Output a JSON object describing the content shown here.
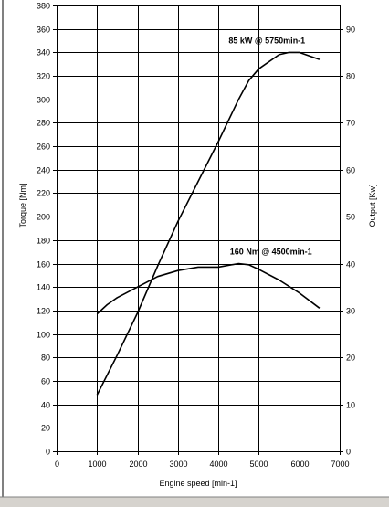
{
  "chart_data": {
    "type": "line",
    "xlabel": "Engine speed [min-1]",
    "ylabel_left": "Torque [Nm]",
    "ylabel_right": "Output [Kw]",
    "x_range": [
      0,
      7000
    ],
    "x_ticks": [
      0,
      1000,
      2000,
      3000,
      4000,
      5000,
      6000,
      7000
    ],
    "y_left_range": [
      0,
      380
    ],
    "y_left_ticks": [
      0,
      20,
      40,
      60,
      80,
      100,
      120,
      140,
      160,
      180,
      200,
      220,
      240,
      260,
      280,
      300,
      320,
      340,
      360,
      380
    ],
    "y_right_range": [
      0,
      95
    ],
    "y_right_ticks": [
      0,
      10,
      20,
      30,
      40,
      50,
      60,
      70,
      80,
      90
    ],
    "grid": true,
    "series": [
      {
        "axis": "left",
        "x": [
          1000,
          1250,
          1500,
          2000,
          2500,
          3000,
          3500,
          4000,
          4500,
          4750,
          5000,
          5500,
          6000,
          6500
        ],
        "y": [
          117,
          125,
          131,
          140,
          149,
          154,
          157,
          157,
          160,
          159,
          155,
          146,
          135,
          122
        ]
      },
      {
        "axis": "right",
        "x": [
          1000,
          1500,
          2000,
          2500,
          3000,
          3500,
          4000,
          4500,
          4750,
          5000,
          5500,
          5750,
          6000,
          6500
        ],
        "y": [
          12,
          20.5,
          29.5,
          39.5,
          49,
          57.5,
          66,
          75,
          79,
          81.5,
          84.5,
          85,
          85,
          83.5
        ]
      }
    ],
    "annotations": [
      {
        "text": "85 kW @ 5750min-1",
        "x": 5200,
        "y_left": 350
      },
      {
        "text": "160 Nm @ 4500min-1",
        "x": 5300,
        "y_left": 170
      }
    ]
  }
}
